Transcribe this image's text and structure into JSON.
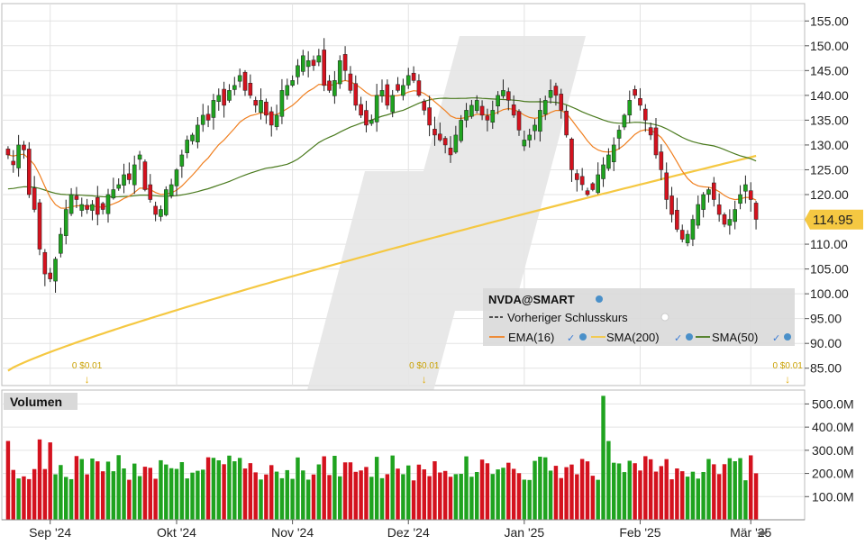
{
  "chart_data": [
    {
      "type": "candlestick",
      "symbol_label": "NVDA@SMART",
      "price_axis": {
        "ticks": [
          "155.00",
          "150.00",
          "145.00",
          "140.00",
          "135.00",
          "130.00",
          "125.00",
          "120.00",
          "115.00",
          "110.00",
          "105.00",
          "100.00",
          "95.00",
          "90.00",
          "85.00"
        ],
        "tick_values": [
          155,
          150,
          145,
          140,
          135,
          130,
          125,
          120,
          115,
          110,
          105,
          100,
          95,
          90,
          85
        ],
        "ylim": [
          81.5,
          158.5
        ]
      },
      "last_price": {
        "label": "114.95",
        "value": 114.95
      },
      "x_axis": {
        "labels": [
          "Sep '24",
          "Okt '24",
          "Nov '24",
          "Dez '24",
          "Jan '25",
          "Feb '25",
          "Mär '25"
        ],
        "label_bar_index": [
          8,
          32,
          54,
          76,
          98,
          120,
          141
        ]
      },
      "dividend_markers": [
        {
          "label": "0 $0.01",
          "bar_index": 15
        },
        {
          "label": "0 $0.01",
          "bar_index": 79
        },
        {
          "label": "0 $0.01",
          "bar_index": 148
        }
      ],
      "legend": {
        "items": [
          {
            "label": "Vorheriger Schlusskurs",
            "style": "dashed",
            "color": "#222222"
          },
          {
            "label": "EMA(16)",
            "color": "#f07f1f"
          },
          {
            "label": "SMA(200)",
            "color": "#f5c842"
          },
          {
            "label": "SMA(50)",
            "color": "#4a7a1e"
          }
        ]
      },
      "colors": {
        "up": "#1fa31f",
        "down": "#d4121e",
        "ema16": "#f07f1f",
        "sma200": "#f5c842",
        "sma50": "#4a7a1e"
      },
      "ohlc_note": "closes approximate, read from axis",
      "closes": [
        128,
        126,
        130,
        129,
        120,
        117,
        109,
        104,
        103,
        107,
        112,
        117,
        120,
        119,
        118,
        117,
        118,
        116,
        117,
        120,
        121,
        122,
        124,
        123,
        126,
        128,
        121,
        119,
        116,
        117,
        121,
        122,
        125,
        128,
        131,
        132,
        134,
        136,
        135,
        139,
        140,
        138,
        141,
        142,
        144,
        141,
        140,
        138,
        139,
        136,
        134,
        136,
        141,
        142,
        143,
        146,
        148,
        147,
        146,
        148,
        142,
        141,
        143,
        147,
        145,
        141,
        138,
        136,
        134,
        135,
        140,
        141,
        138,
        140,
        141,
        142,
        144,
        143,
        140,
        137,
        134,
        132,
        131,
        130,
        128,
        132,
        135,
        137,
        138,
        139,
        136,
        135,
        137,
        140,
        141,
        139,
        136,
        133,
        131,
        132,
        134,
        137,
        139,
        141,
        140,
        137,
        132,
        125,
        123,
        122,
        120,
        121,
        124,
        126,
        128,
        130,
        133,
        136,
        139,
        140,
        138,
        135,
        132,
        128,
        125,
        119,
        116,
        113,
        111,
        112,
        115,
        118,
        120,
        121,
        119,
        116,
        114,
        115,
        117,
        120,
        122,
        119,
        115
      ],
      "volume_axis": {
        "ticks": [
          "500.0M",
          "400.0M",
          "300.0M",
          "200.0M",
          "100.0M"
        ],
        "tick_values": [
          500,
          400,
          300,
          200,
          100
        ],
        "ylim": [
          0,
          560
        ],
        "unit": "M"
      }
    }
  ],
  "volume_panel": {
    "title": "Volumen"
  }
}
